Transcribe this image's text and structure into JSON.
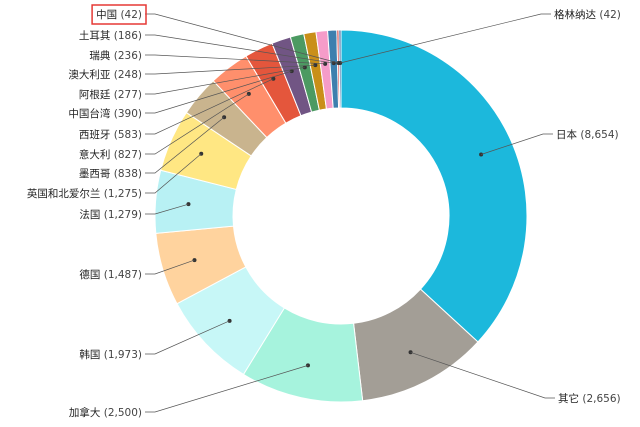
{
  "chart_data": {
    "type": "donut",
    "title": "",
    "slices": [
      {
        "label": "日本",
        "value": 8654,
        "value_text": "(8,654)",
        "color": "#1cb8dc"
      },
      {
        "label": "其它",
        "value": 2656,
        "value_text": "(2,656)",
        "color": "#a39e96"
      },
      {
        "label": "加拿大",
        "value": 2500,
        "value_text": "(2,500)",
        "color": "#a6f3dd"
      },
      {
        "label": "韩国",
        "value": 1973,
        "value_text": "(1,973)",
        "color": "#c7f7f7"
      },
      {
        "label": "德国",
        "value": 1487,
        "value_text": "(1,487)",
        "color": "#ffd39e"
      },
      {
        "label": "法国",
        "value": 1279,
        "value_text": "(1,279)",
        "color": "#b8f1f4"
      },
      {
        "label": "英国和北爱尔兰",
        "value": 1275,
        "value_text": "(1,275)",
        "color": "#ffe783"
      },
      {
        "label": "墨西哥",
        "value": 838,
        "value_text": "(838)",
        "color": "#c9b48e"
      },
      {
        "label": "意大利",
        "value": 827,
        "value_text": "(827)",
        "color": "#ff8f6c"
      },
      {
        "label": "西班牙",
        "value": 583,
        "value_text": "(583)",
        "color": "#e4563c"
      },
      {
        "label": "中国台湾",
        "value": 390,
        "value_text": "(390)",
        "color": "#715584"
      },
      {
        "label": "阿根廷",
        "value": 277,
        "value_text": "(277)",
        "color": "#4c9a62"
      },
      {
        "label": "澳大利亚",
        "value": 248,
        "value_text": "(248)",
        "color": "#c98f19"
      },
      {
        "label": "瑞典",
        "value": 236,
        "value_text": "(236)",
        "color": "#f59cc9"
      },
      {
        "label": "土耳其",
        "value": 186,
        "value_text": "(186)",
        "color": "#3d7fae"
      },
      {
        "label": "中国",
        "value": 42,
        "value_text": "(42)",
        "color": "#d43a3a",
        "highlighted": true
      },
      {
        "label": "格林纳达",
        "value": 42,
        "value_text": "(42)",
        "color": "#2a5a9a"
      }
    ]
  }
}
